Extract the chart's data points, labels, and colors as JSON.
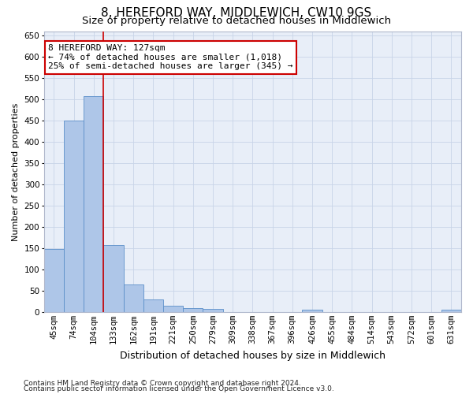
{
  "title1": "8, HEREFORD WAY, MIDDLEWICH, CW10 9GS",
  "title2": "Size of property relative to detached houses in Middlewich",
  "xlabel": "Distribution of detached houses by size in Middlewich",
  "ylabel": "Number of detached properties",
  "categories": [
    "45sqm",
    "74sqm",
    "104sqm",
    "133sqm",
    "162sqm",
    "191sqm",
    "221sqm",
    "250sqm",
    "279sqm",
    "309sqm",
    "338sqm",
    "367sqm",
    "396sqm",
    "426sqm",
    "455sqm",
    "484sqm",
    "514sqm",
    "543sqm",
    "572sqm",
    "601sqm",
    "631sqm"
  ],
  "values": [
    148,
    450,
    508,
    158,
    65,
    30,
    14,
    9,
    7,
    0,
    0,
    0,
    0,
    5,
    0,
    0,
    0,
    0,
    0,
    0,
    5
  ],
  "bar_color": "#aec6e8",
  "bar_edge_color": "#5b8fc9",
  "vline_x": 2.5,
  "vline_color": "#cc0000",
  "annotation_line1": "8 HEREFORD WAY: 127sqm",
  "annotation_line2": "← 74% of detached houses are smaller (1,018)",
  "annotation_line3": "25% of semi-detached houses are larger (345) →",
  "box_edge_color": "#cc0000",
  "ylim": [
    0,
    660
  ],
  "yticks": [
    0,
    50,
    100,
    150,
    200,
    250,
    300,
    350,
    400,
    450,
    500,
    550,
    600,
    650
  ],
  "footnote1": "Contains HM Land Registry data © Crown copyright and database right 2024.",
  "footnote2": "Contains public sector information licensed under the Open Government Licence v3.0.",
  "bg_color": "#ffffff",
  "plot_bg_color": "#e8eef8",
  "grid_color": "#c8d4e8",
  "title1_fontsize": 11,
  "title2_fontsize": 9.5,
  "xlabel_fontsize": 9,
  "ylabel_fontsize": 8,
  "tick_fontsize": 7.5,
  "annot_fontsize": 8,
  "footnote_fontsize": 6.5
}
